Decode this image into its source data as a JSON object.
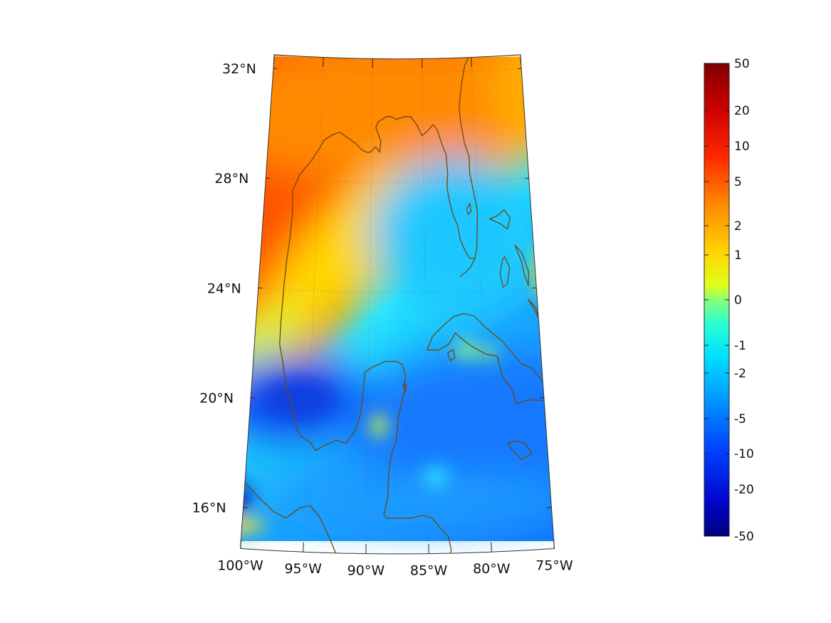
{
  "map": {
    "projection": "conic",
    "lon_range": [
      -100,
      -75
    ],
    "lat_range": [
      14.5,
      32.5
    ],
    "lat_ticks": [
      {
        "value": 32,
        "label": "32°N"
      },
      {
        "value": 28,
        "label": "28°N"
      },
      {
        "value": 24,
        "label": "24°N"
      },
      {
        "value": 20,
        "label": "20°N"
      },
      {
        "value": 16,
        "label": "16°N"
      }
    ],
    "lon_ticks": [
      {
        "value": -100,
        "label": "100°W"
      },
      {
        "value": -95,
        "label": "95°W"
      },
      {
        "value": -90,
        "label": "90°W"
      },
      {
        "value": -85,
        "label": "85°W"
      },
      {
        "value": -80,
        "label": "80°W"
      },
      {
        "value": -75,
        "label": "75°W"
      }
    ],
    "gridlines": "dotted",
    "coastline_color": "#6b4a12"
  },
  "colorbar": {
    "position": "right",
    "colormap": "jet",
    "scale": "symmetric-log",
    "ticks": [
      "50",
      "20",
      "10",
      "5",
      "2",
      "1",
      "0",
      "-1",
      "-2",
      "-5",
      "-10",
      "-20",
      "-50"
    ]
  }
}
